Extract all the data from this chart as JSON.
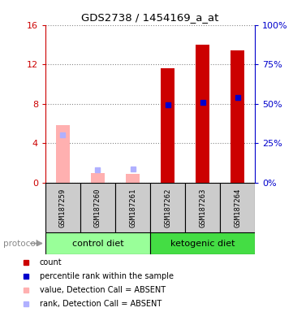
{
  "title": "GDS2738 / 1454169_a_at",
  "samples": [
    "GSM187259",
    "GSM187260",
    "GSM187261",
    "GSM187262",
    "GSM187263",
    "GSM187264"
  ],
  "count_values": [
    null,
    null,
    null,
    11.6,
    14.0,
    13.4
  ],
  "count_absent": [
    5.8,
    1.0,
    0.9,
    null,
    null,
    null
  ],
  "rank_values": [
    null,
    null,
    null,
    7.85,
    8.1,
    8.6
  ],
  "rank_absent": [
    4.8,
    1.3,
    1.4,
    null,
    null,
    null
  ],
  "ylim_left": [
    0,
    16
  ],
  "ylim_right": [
    0,
    100
  ],
  "yticks_left": [
    0,
    4,
    8,
    12,
    16
  ],
  "yticks_right": [
    0,
    25,
    50,
    75,
    100
  ],
  "ytick_labels_left": [
    "0",
    "4",
    "8",
    "12",
    "16"
  ],
  "ytick_labels_right": [
    "0%",
    "25%",
    "50%",
    "75%",
    "100%"
  ],
  "color_count": "#cc0000",
  "color_rank": "#0000cc",
  "color_count_absent": "#ffb0b0",
  "color_rank_absent": "#b0b0ff",
  "groups": [
    {
      "label": "control diet",
      "indices": [
        0,
        1,
        2
      ],
      "color": "#99ff99"
    },
    {
      "label": "ketogenic diet",
      "indices": [
        3,
        4,
        5
      ],
      "color": "#44dd44"
    }
  ],
  "protocol_label": "protocol",
  "bar_width": 0.4,
  "background_color": "#ffffff",
  "grid_color": "#888888",
  "sample_box_color": "#cccccc",
  "legend_items": [
    {
      "color": "#cc0000",
      "label": "count"
    },
    {
      "color": "#0000cc",
      "label": "percentile rank within the sample"
    },
    {
      "color": "#ffb0b0",
      "label": "value, Detection Call = ABSENT"
    },
    {
      "color": "#b0b0ff",
      "label": "rank, Detection Call = ABSENT"
    }
  ]
}
